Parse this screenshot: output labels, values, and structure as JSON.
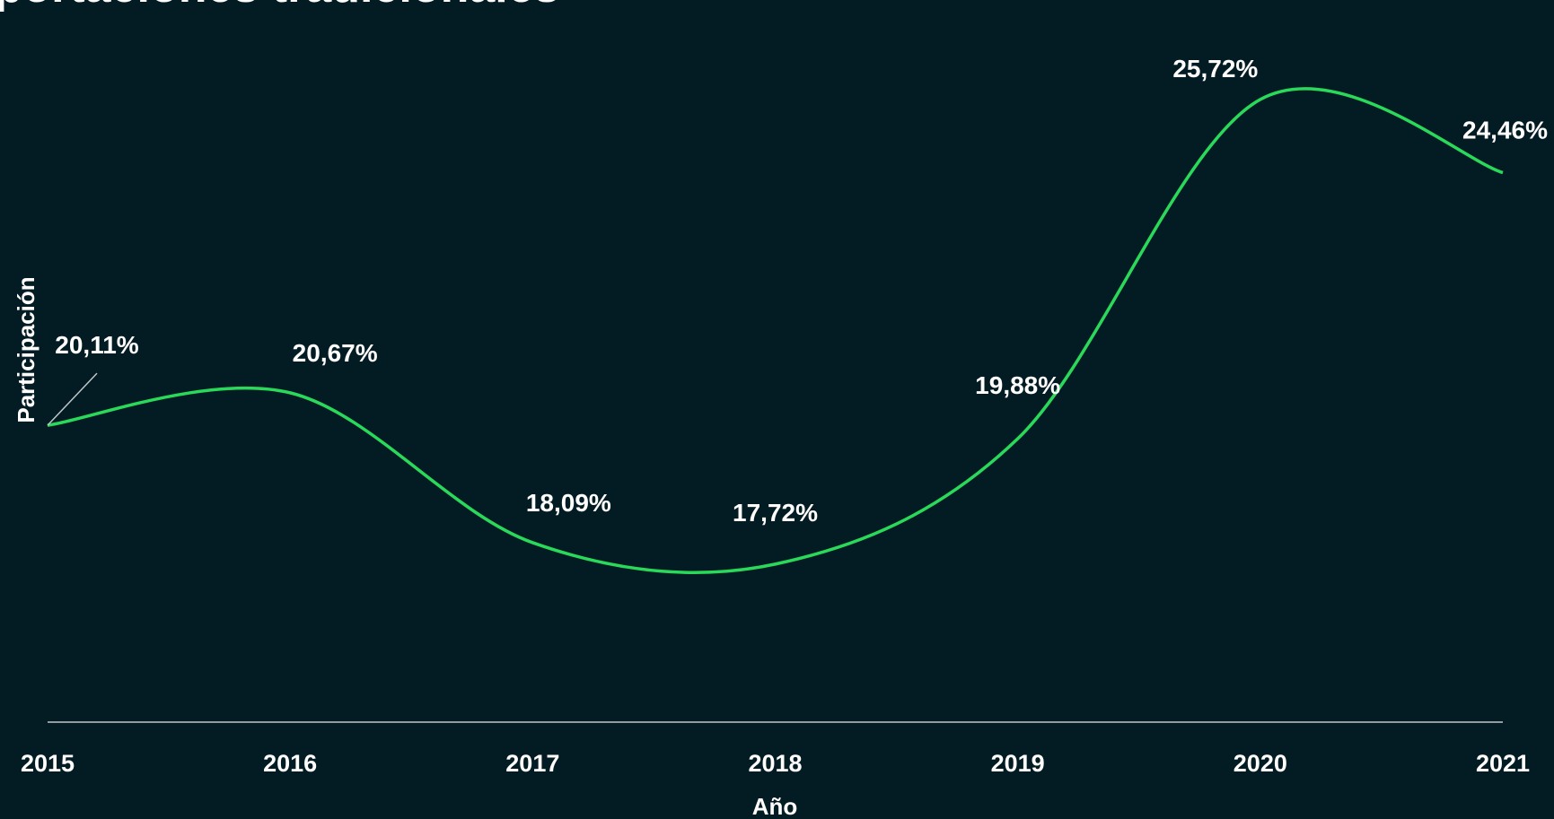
{
  "chart_data": {
    "type": "line",
    "title": "Exportaciones tradicionales",
    "x_label": "Año",
    "y_label": "Participación",
    "x": [
      2015,
      2016,
      2017,
      2018,
      2019,
      2020,
      2021
    ],
    "xlim": [
      2015,
      2021
    ],
    "xticks": [
      2015,
      2016,
      2017,
      2018,
      2019,
      2020,
      2021
    ],
    "ylim": [
      15,
      27
    ],
    "series": [
      {
        "name": "Participación",
        "color": "#2bd95a",
        "values": [
          20.11,
          20.67,
          18.09,
          17.72,
          19.88,
          25.72,
          24.46
        ],
        "value_labels": [
          "20,11%",
          "20,67%",
          "18,09%",
          "17,72%",
          "19,88%",
          "25,72%",
          "24,46%"
        ]
      }
    ],
    "smooth": true
  }
}
